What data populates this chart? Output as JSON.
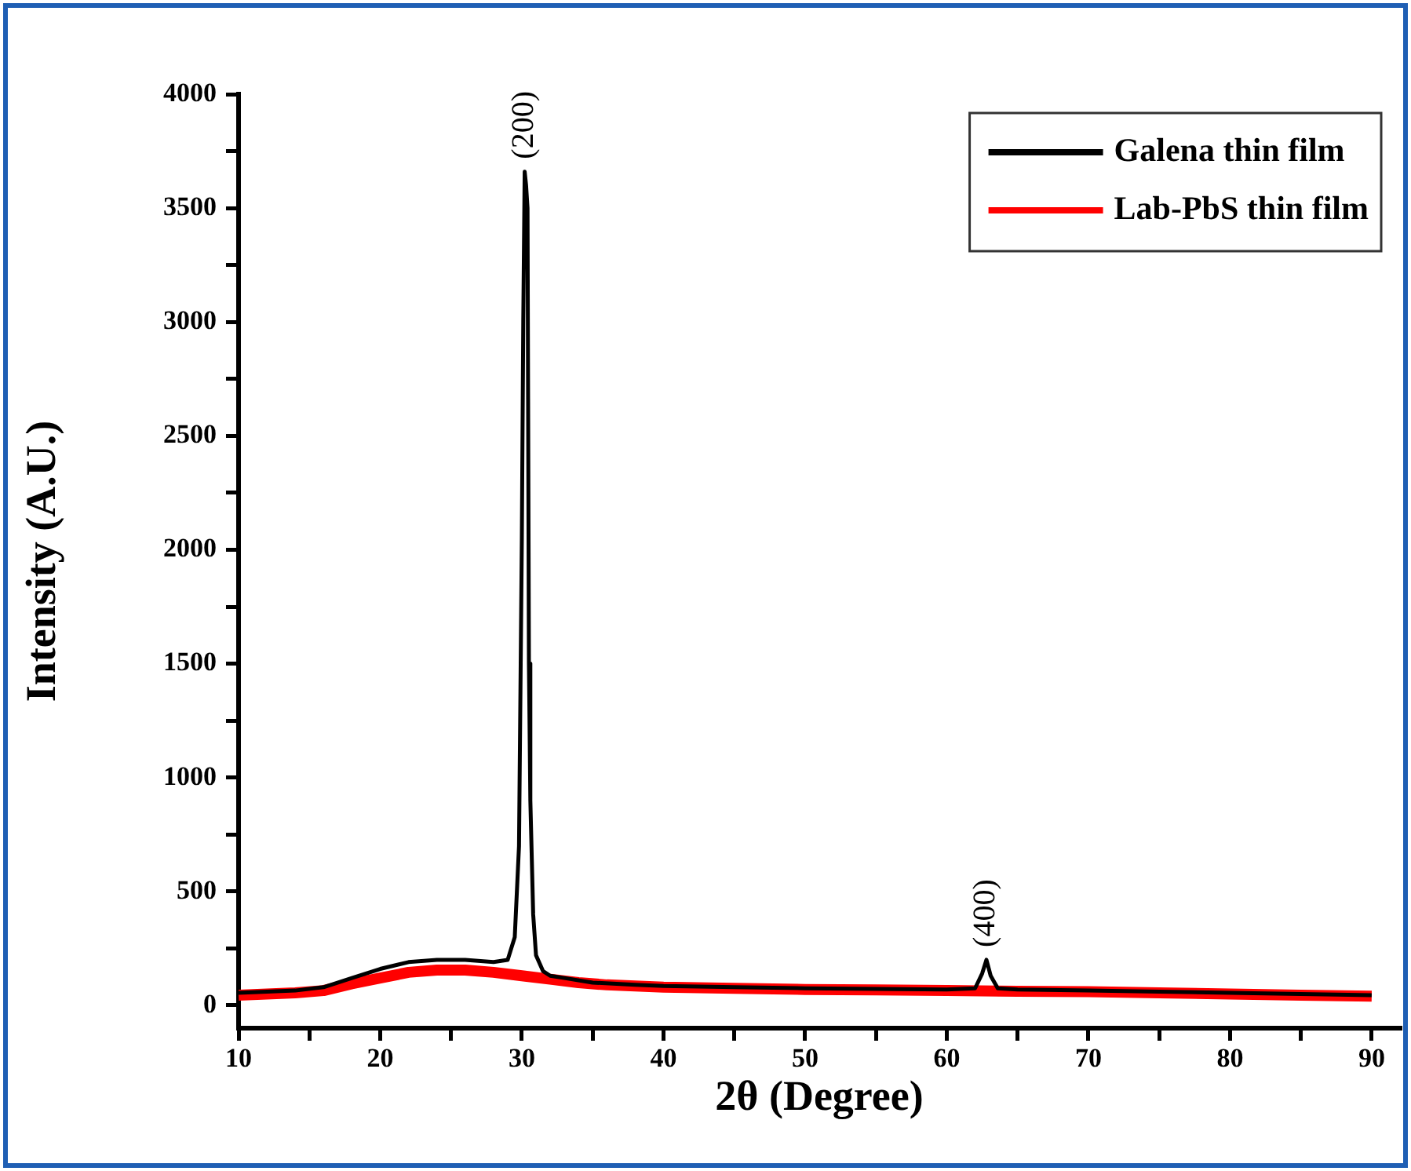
{
  "chart_data": {
    "type": "line",
    "xlabel": "2θ (Degree)",
    "ylabel": "Intensity (A.U.)",
    "xlim": [
      10,
      92
    ],
    "xticks": [
      10,
      {
        "value": 15,
        "label": null
      },
      20,
      {
        "value": 25,
        "label": null
      },
      30,
      {
        "value": 35,
        "label": null
      },
      40,
      {
        "value": 45,
        "label": null
      },
      50,
      {
        "value": 55,
        "label": null
      },
      60,
      {
        "value": 65,
        "label": null
      },
      70,
      {
        "value": 75,
        "label": null
      },
      80,
      {
        "value": 85,
        "label": null
      },
      90
    ],
    "ylim": [
      -100,
      4000
    ],
    "yticks": [
      0,
      {
        "value": 250,
        "label": null
      },
      500,
      {
        "value": 750,
        "label": null
      },
      1000,
      {
        "value": 1250,
        "label": null
      },
      1500,
      {
        "value": 1750,
        "label": null
      },
      2000,
      {
        "value": 2250,
        "label": null
      },
      2500,
      {
        "value": 2750,
        "label": null
      },
      3000,
      {
        "value": 3250,
        "label": null
      },
      3500,
      {
        "value": 3750,
        "label": null
      },
      4000
    ],
    "grid": false,
    "legend": "top right",
    "marker": "none",
    "line_style": "solid",
    "annotations": [
      {
        "text": "(200)",
        "x": 30.2,
        "y": 3660
      },
      {
        "text": "(400)",
        "x": 62.8,
        "y": 200
      }
    ],
    "series": [
      {
        "name": "Galena thin film",
        "color": "#000000",
        "x": [
          10,
          12,
          14,
          16,
          18,
          20,
          22,
          24,
          26,
          28,
          29,
          29.5,
          29.8,
          30.0,
          30.1,
          30.2,
          30.3,
          30.4,
          30.5,
          30.6,
          30.8,
          31,
          31.5,
          32,
          33,
          35,
          38,
          40,
          45,
          50,
          55,
          60,
          62,
          62.5,
          62.8,
          63.1,
          63.6,
          65,
          70,
          75,
          80,
          85,
          90
        ],
        "values": [
          55,
          60,
          65,
          80,
          120,
          160,
          190,
          200,
          200,
          190,
          200,
          300,
          700,
          2050,
          3000,
          3660,
          3600,
          3500,
          1500,
          900,
          400,
          220,
          150,
          130,
          120,
          100,
          90,
          85,
          80,
          75,
          72,
          70,
          75,
          140,
          200,
          130,
          75,
          70,
          65,
          60,
          55,
          50,
          45
        ]
      },
      {
        "name": "Lab-PbS thin film",
        "color": "#ff0000",
        "x": [
          10,
          12,
          14,
          16,
          18,
          20,
          22,
          24,
          26,
          28,
          30,
          32,
          34,
          36,
          40,
          45,
          50,
          55,
          60,
          65,
          70,
          75,
          80,
          85,
          90
        ],
        "values": [
          45,
          50,
          55,
          65,
          95,
          120,
          145,
          155,
          155,
          145,
          130,
          115,
          100,
          90,
          80,
          75,
          70,
          68,
          65,
          62,
          60,
          55,
          50,
          45,
          40
        ]
      }
    ]
  }
}
